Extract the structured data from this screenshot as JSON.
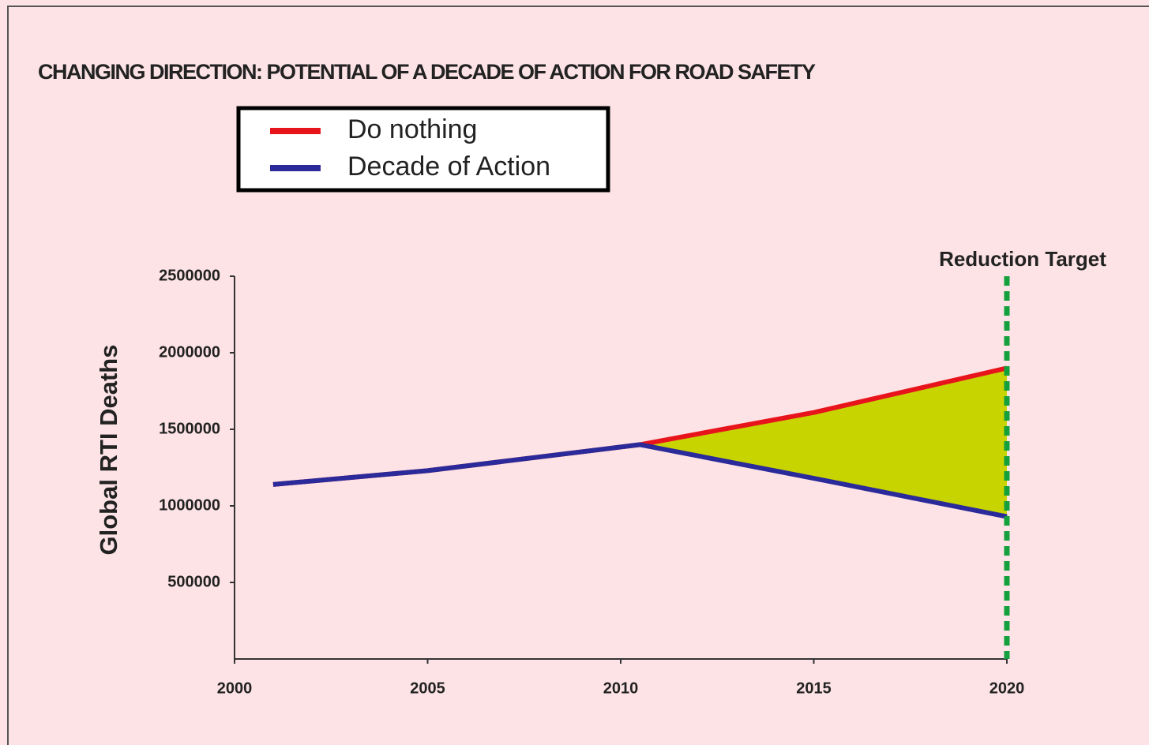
{
  "chart_data": {
    "type": "line",
    "title": "CHANGING DIRECTION: POTENTIAL OF A DECADE OF ACTION FOR ROAD SAFETY",
    "y_label": "Global RTI Deaths",
    "x": [
      2001,
      2005,
      2010.5,
      2015,
      2020
    ],
    "series": [
      {
        "name": "Do nothing",
        "color": "#e8141c",
        "values": [
          1140000,
          1230000,
          1400000,
          1610000,
          1900000
        ]
      },
      {
        "name": "Decade of Action",
        "color": "#2a2a9a",
        "values": [
          1140000,
          1230000,
          1400000,
          1180000,
          930000
        ]
      }
    ],
    "fill_between_color": "#c8d400",
    "reference_line": {
      "x": 2020,
      "label": "Reduction Target",
      "color": "#14a03c"
    },
    "xlim": [
      2000,
      2020
    ],
    "xticks": [
      2000,
      2005,
      2010,
      2015,
      2020
    ],
    "ylim": [
      0,
      2500000
    ],
    "yticks": [
      500000,
      1000000,
      1500000,
      2000000,
      2500000
    ]
  }
}
